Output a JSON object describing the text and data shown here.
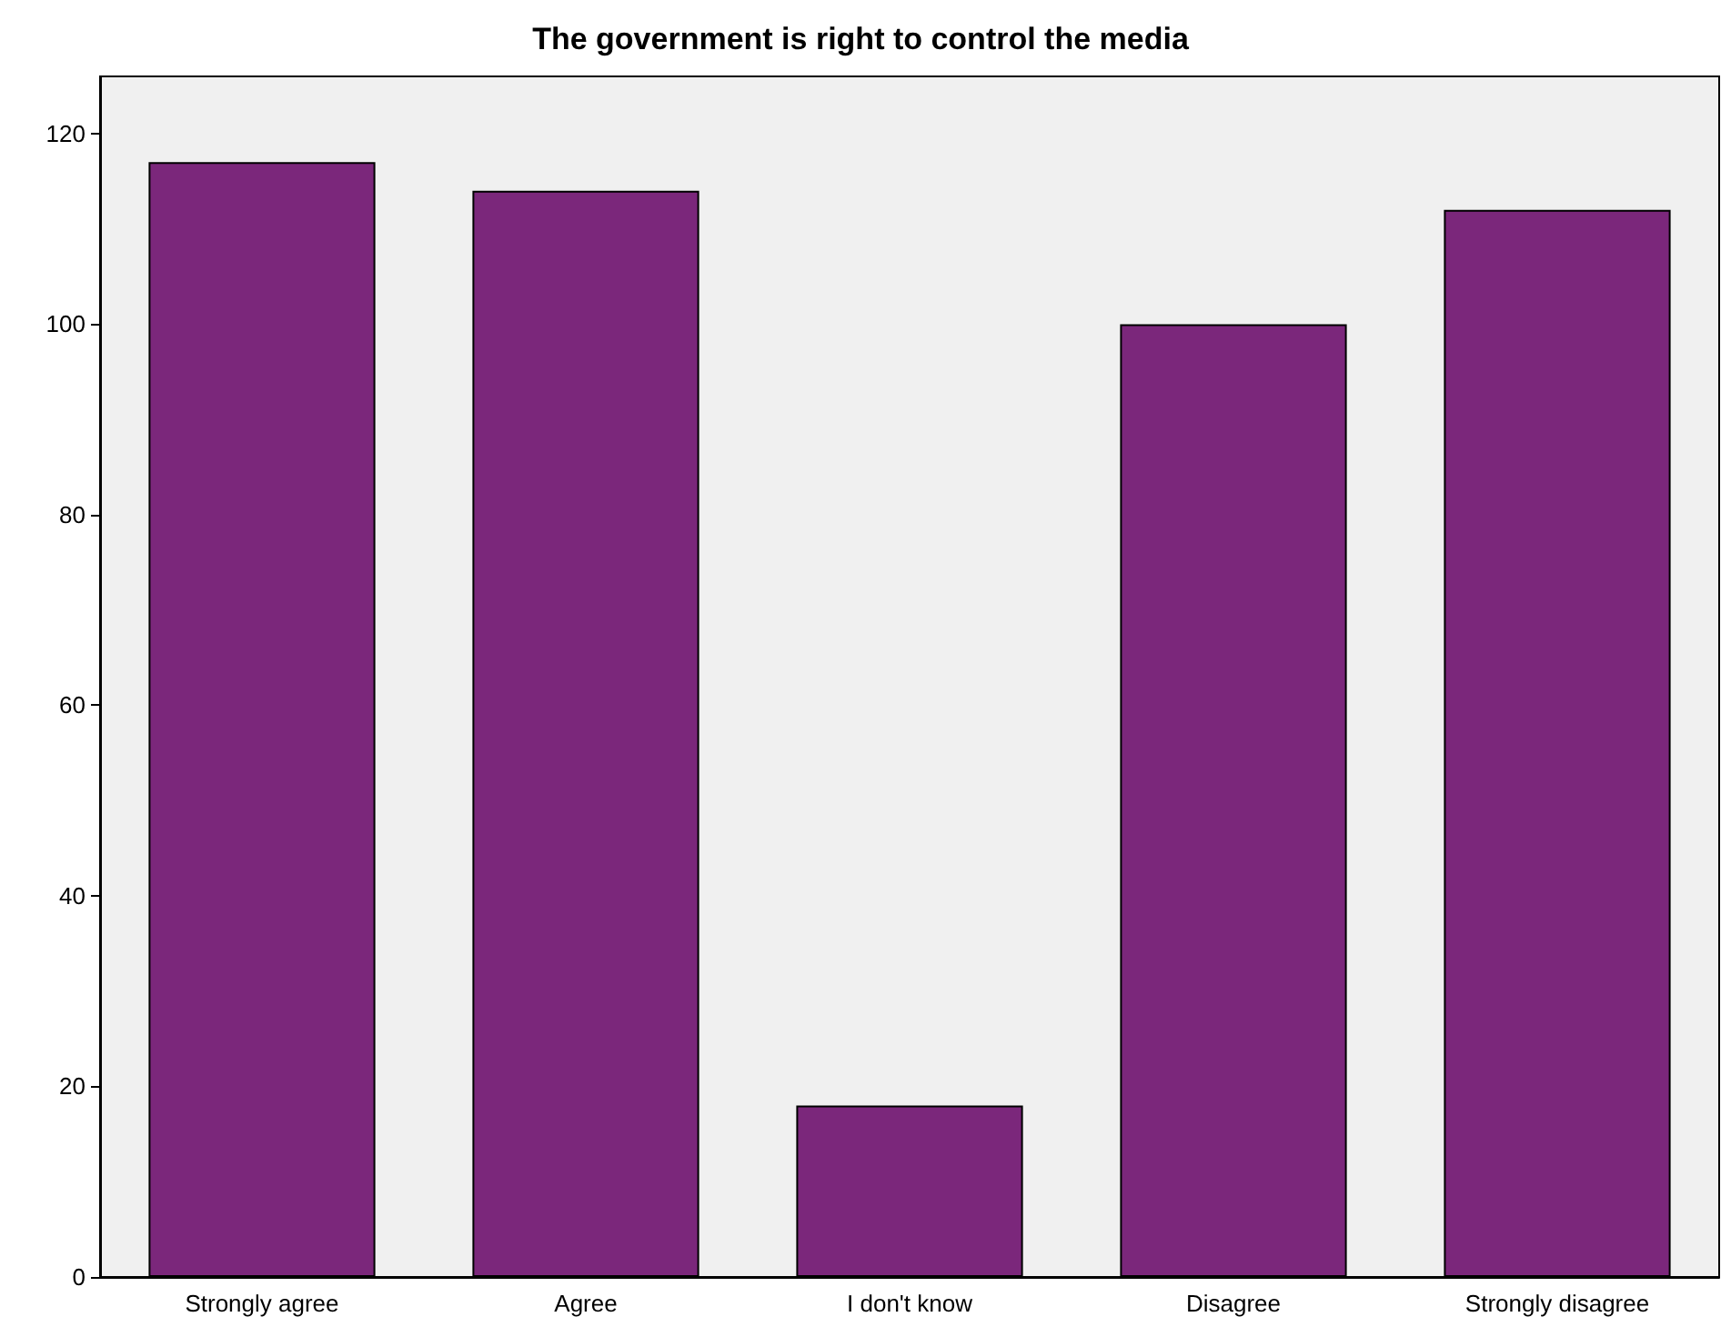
{
  "chart_data": {
    "type": "bar",
    "title": "The government is right to control the media",
    "categories": [
      "Strongly agree",
      "Agree",
      "I don't know",
      "Disagree",
      "Strongly disagree"
    ],
    "values": [
      117,
      114,
      18,
      100,
      112
    ],
    "color": "#7b277b",
    "ylim": [
      0,
      126
    ],
    "yticks": [
      0,
      20,
      40,
      60,
      80,
      100,
      120
    ],
    "grid": false
  }
}
